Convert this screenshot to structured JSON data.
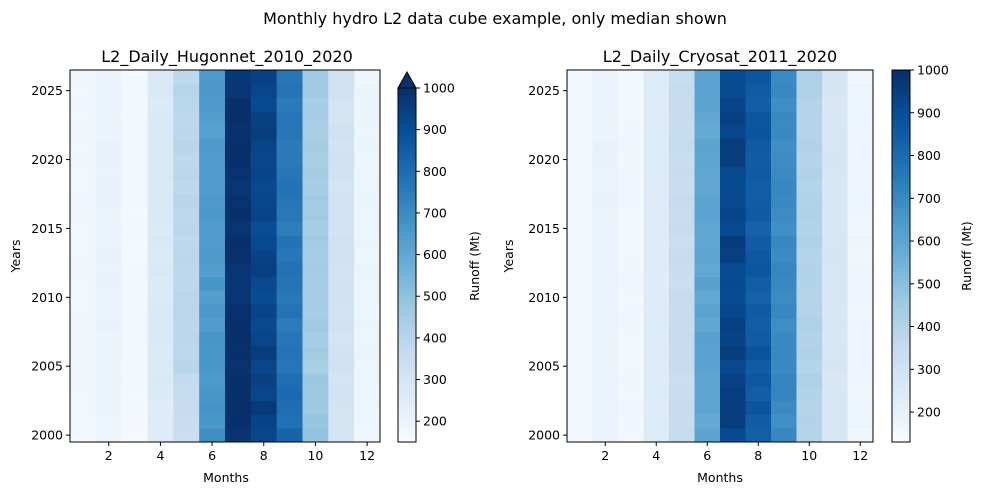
{
  "figure": {
    "suptitle": "Monthly hydro L2 data cube example, only median shown"
  },
  "chart_data": [
    {
      "type": "heatmap",
      "title": "L2_Daily_Hugonnet_2010_2020",
      "xlabel": "Months",
      "ylabel": "Years",
      "colorbar_label": "Runoff (Mt)",
      "colormap": "Blues",
      "colorbar_extend": "max",
      "xlim": [
        0.5,
        12.5
      ],
      "ylim": [
        1999.5,
        2026.5
      ],
      "xticks": [
        2,
        4,
        6,
        8,
        10,
        12
      ],
      "yticks": [
        2000,
        2005,
        2010,
        2015,
        2020,
        2025
      ],
      "vmin": 150,
      "vmax": 1000,
      "cbar_ticks": [
        200,
        300,
        400,
        500,
        600,
        700,
        800,
        900,
        1000
      ],
      "months": [
        1,
        2,
        3,
        4,
        5,
        6,
        7,
        8,
        9,
        10,
        11,
        12
      ],
      "years": [
        2000,
        2001,
        2002,
        2003,
        2004,
        2005,
        2006,
        2007,
        2008,
        2009,
        2010,
        2011,
        2012,
        2013,
        2014,
        2015,
        2016,
        2017,
        2018,
        2019,
        2020,
        2021,
        2022,
        2023,
        2024,
        2025,
        2026
      ],
      "median_by_month": [
        180,
        205,
        170,
        270,
        390,
        650,
        1005,
        935,
        770,
        450,
        310,
        195
      ],
      "early_years_by_month": [
        175,
        190,
        165,
        250,
        340,
        690,
        1010,
        950,
        820,
        500,
        300,
        185
      ]
    },
    {
      "type": "heatmap",
      "title": "L2_Daily_Cryosat_2011_2020",
      "xlabel": "Months",
      "ylabel": "Years",
      "colorbar_label": "Runoff (Mt)",
      "colormap": "Blues",
      "colorbar_extend": "neither",
      "xlim": [
        0.5,
        12.5
      ],
      "ylim": [
        1999.5,
        2026.5
      ],
      "xticks": [
        2,
        4,
        6,
        8,
        10,
        12
      ],
      "yticks": [
        2000,
        2005,
        2010,
        2015,
        2020,
        2025
      ],
      "vmin": 130,
      "vmax": 1000,
      "cbar_ticks": [
        200,
        300,
        400,
        500,
        600,
        700,
        800,
        900,
        1000
      ],
      "months": [
        1,
        2,
        3,
        4,
        5,
        6,
        7,
        8,
        9,
        10,
        11,
        12
      ],
      "years": [
        2000,
        2001,
        2002,
        2003,
        2004,
        2005,
        2006,
        2007,
        2008,
        2009,
        2010,
        2011,
        2012,
        2013,
        2014,
        2015,
        2016,
        2017,
        2018,
        2019,
        2020,
        2021,
        2022,
        2023,
        2024,
        2025,
        2026
      ],
      "median_by_month": [
        155,
        185,
        160,
        240,
        340,
        600,
        935,
        860,
        700,
        400,
        270,
        170
      ]
    }
  ]
}
